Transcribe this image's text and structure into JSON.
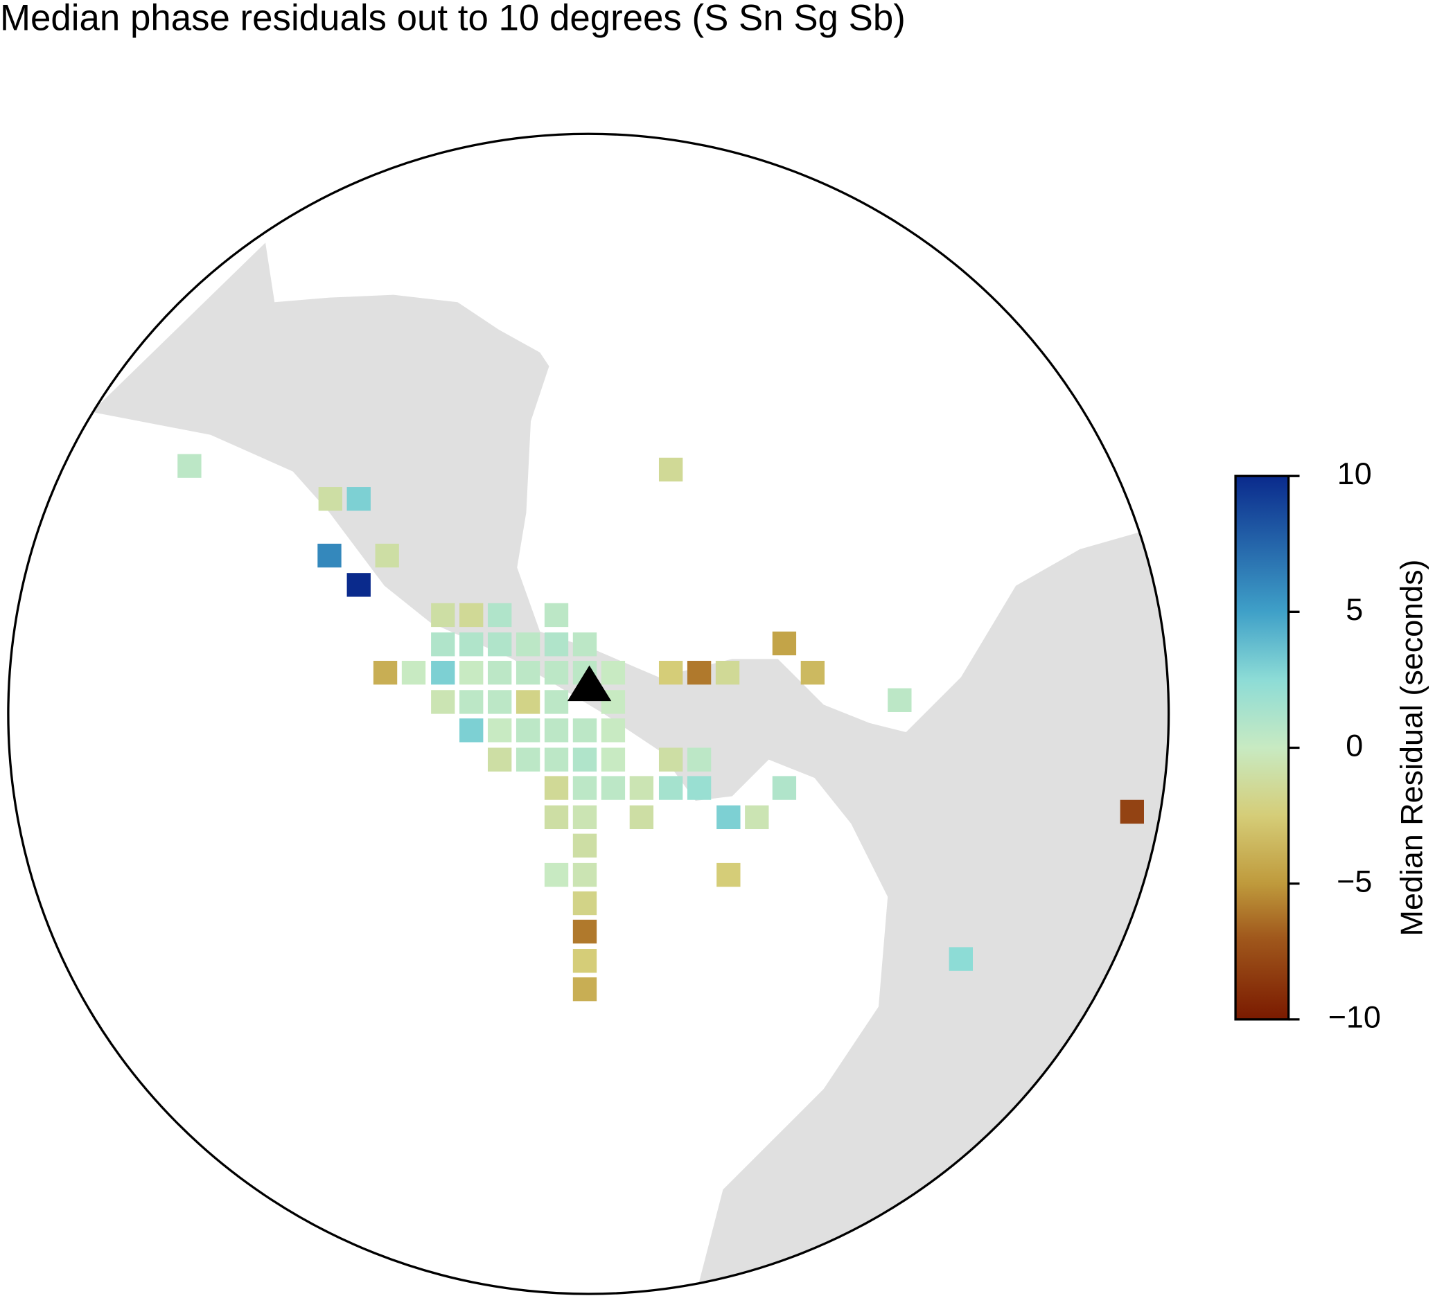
{
  "chart_data": {
    "type": "map",
    "title": "Median phase residuals out to 10 degrees (S Sn Sg Sb)",
    "colorbar": {
      "label": "Median Residual (seconds)",
      "lim": [
        -10,
        10
      ],
      "ticks": [
        10,
        5,
        0,
        {
          "value": -5,
          "label": "−5"
        },
        {
          "value": -10,
          "label": "−10"
        }
      ]
    },
    "values": [
      0.5,
      -1,
      3,
      -1.5,
      6,
      10,
      -1,
      -1,
      -1.5,
      1,
      0.5,
      1,
      1,
      1,
      0.5,
      1,
      0.5,
      -4,
      0,
      3,
      0,
      0.5,
      0.5,
      0.5,
      0.5,
      0,
      -2.5,
      -6,
      -1.5,
      -3.5,
      -4.5,
      -0.5,
      0.5,
      0.5,
      -2,
      0.5,
      0,
      0.5,
      3,
      0,
      0.5,
      0.5,
      0.5,
      0,
      -1,
      0.5,
      0.5,
      1,
      0,
      -1,
      0.5,
      -1.5,
      0.5,
      0.5,
      -0.5,
      1.5,
      2,
      1,
      -1,
      -0.5,
      -1,
      3,
      -0.5,
      -8,
      -1,
      0,
      -0.5,
      -2.5,
      -2,
      -6,
      -2.5,
      2.5,
      -4
    ]
  }
}
